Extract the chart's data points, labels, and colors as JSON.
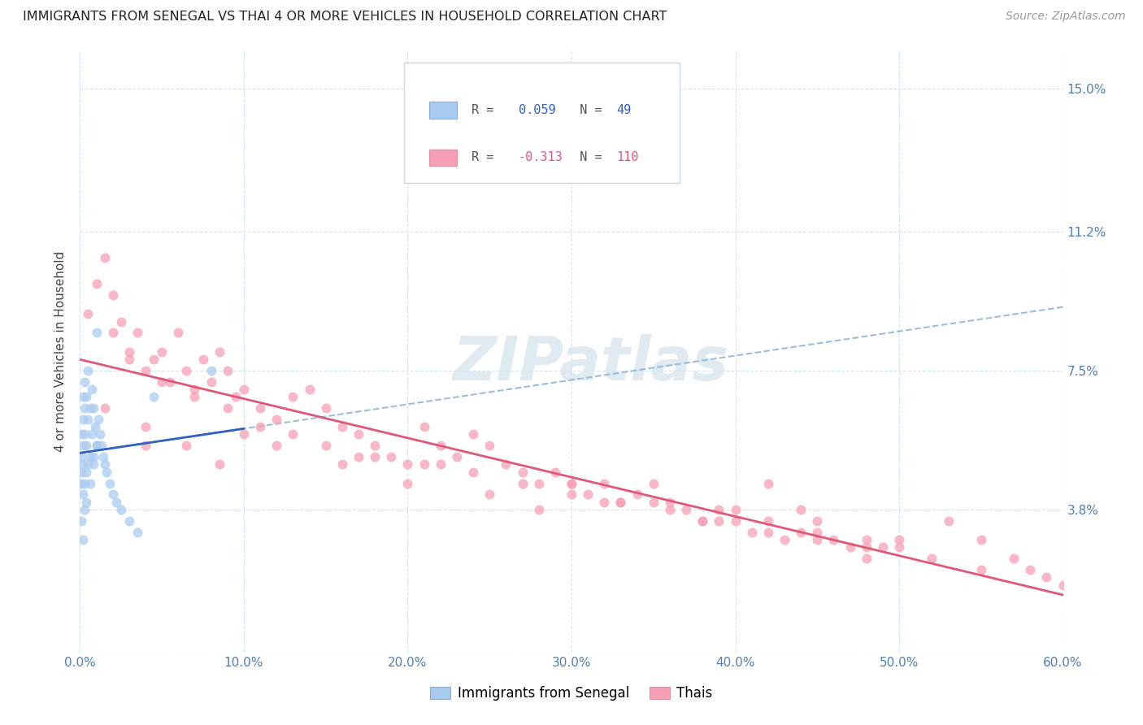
{
  "title": "IMMIGRANTS FROM SENEGAL VS THAI 4 OR MORE VEHICLES IN HOUSEHOLD CORRELATION CHART",
  "source": "Source: ZipAtlas.com",
  "ylabel_label": "4 or more Vehicles in Household",
  "legend_label1": "Immigrants from Senegal",
  "legend_label2": "Thais",
  "r1": 0.059,
  "n1": 49,
  "r2": -0.313,
  "n2": 110,
  "color_senegal": "#aacbf0",
  "color_thai": "#f5a0b5",
  "color_senegal_line": "#3060c0",
  "color_thai_line": "#e05878",
  "color_dash": "#90b8d8",
  "color_axis_text": "#5080b0",
  "color_grid": "#d5e5f0",
  "watermark_color": "#ccdde8",
  "xlim": [
    0,
    60
  ],
  "ylim": [
    0,
    16.0
  ],
  "xtick_vals": [
    0,
    10,
    20,
    30,
    40,
    50,
    60
  ],
  "ytick_vals": [
    0,
    3.8,
    7.5,
    11.2,
    15.0
  ],
  "ytick_labels": [
    "",
    "3.8%",
    "7.5%",
    "11.2%",
    "15.0%"
  ],
  "senegal_x": [
    0.1,
    0.1,
    0.1,
    0.1,
    0.2,
    0.2,
    0.2,
    0.2,
    0.2,
    0.3,
    0.3,
    0.3,
    0.3,
    0.4,
    0.4,
    0.4,
    0.5,
    0.5,
    0.5,
    0.6,
    0.6,
    0.7,
    0.7,
    0.8,
    0.8,
    0.9,
    1.0,
    1.0,
    1.1,
    1.2,
    1.3,
    1.4,
    1.5,
    1.6,
    1.8,
    2.0,
    2.2,
    2.5,
    3.0,
    3.5,
    0.1,
    0.2,
    0.3,
    0.4,
    0.6,
    0.8,
    1.0,
    4.5,
    8.0
  ],
  "senegal_y": [
    5.8,
    5.2,
    4.8,
    4.5,
    6.8,
    6.2,
    5.5,
    5.0,
    4.2,
    7.2,
    6.5,
    5.8,
    4.5,
    6.8,
    5.5,
    4.8,
    7.5,
    6.2,
    5.0,
    6.5,
    5.2,
    7.0,
    5.8,
    6.5,
    5.2,
    6.0,
    8.5,
    5.5,
    6.2,
    5.8,
    5.5,
    5.2,
    5.0,
    4.8,
    4.5,
    4.2,
    4.0,
    3.8,
    3.5,
    3.2,
    3.5,
    3.0,
    3.8,
    4.0,
    4.5,
    5.0,
    5.5,
    6.8,
    7.5
  ],
  "thai_x": [
    0.5,
    1.0,
    1.5,
    2.0,
    2.5,
    3.0,
    3.5,
    4.0,
    4.5,
    5.0,
    5.5,
    6.0,
    6.5,
    7.0,
    7.5,
    8.0,
    8.5,
    9.0,
    9.5,
    10.0,
    11.0,
    12.0,
    13.0,
    14.0,
    15.0,
    16.0,
    17.0,
    18.0,
    19.0,
    20.0,
    21.0,
    22.0,
    23.0,
    24.0,
    25.0,
    26.0,
    27.0,
    28.0,
    29.0,
    30.0,
    31.0,
    32.0,
    33.0,
    34.0,
    35.0,
    36.0,
    37.0,
    38.0,
    39.0,
    40.0,
    41.0,
    42.0,
    43.0,
    44.0,
    45.0,
    46.0,
    47.0,
    48.0,
    49.0,
    50.0,
    2.0,
    3.0,
    5.0,
    7.0,
    9.0,
    11.0,
    13.0,
    15.0,
    18.0,
    21.0,
    24.0,
    27.0,
    30.0,
    33.0,
    36.0,
    39.0,
    42.0,
    45.0,
    48.0,
    52.0,
    1.5,
    4.0,
    6.5,
    8.5,
    12.0,
    16.0,
    20.0,
    25.0,
    30.0,
    35.0,
    40.0,
    45.0,
    50.0,
    55.0,
    57.0,
    58.0,
    59.0,
    60.0,
    4.0,
    22.0,
    42.0,
    53.0,
    55.0,
    28.0,
    38.0,
    48.0,
    10.0,
    17.0,
    32.0,
    44.0
  ],
  "thai_y": [
    9.0,
    9.8,
    10.5,
    9.5,
    8.8,
    8.0,
    8.5,
    7.5,
    7.8,
    8.0,
    7.2,
    8.5,
    7.5,
    7.0,
    7.8,
    7.2,
    8.0,
    7.5,
    6.8,
    7.0,
    6.5,
    6.2,
    6.8,
    7.0,
    6.5,
    6.0,
    5.8,
    5.5,
    5.2,
    5.0,
    6.0,
    5.5,
    5.2,
    5.8,
    5.5,
    5.0,
    4.8,
    4.5,
    4.8,
    4.5,
    4.2,
    4.5,
    4.0,
    4.2,
    4.5,
    4.0,
    3.8,
    3.5,
    3.8,
    3.5,
    3.2,
    3.5,
    3.0,
    3.2,
    3.5,
    3.0,
    2.8,
    2.5,
    2.8,
    3.0,
    8.5,
    7.8,
    7.2,
    6.8,
    6.5,
    6.0,
    5.8,
    5.5,
    5.2,
    5.0,
    4.8,
    4.5,
    4.2,
    4.0,
    3.8,
    3.5,
    3.2,
    3.0,
    2.8,
    2.5,
    6.5,
    6.0,
    5.5,
    5.0,
    5.5,
    5.0,
    4.5,
    4.2,
    4.5,
    4.0,
    3.8,
    3.2,
    2.8,
    2.2,
    2.5,
    2.2,
    2.0,
    1.8,
    5.5,
    5.0,
    4.5,
    3.5,
    3.0,
    3.8,
    3.5,
    3.0,
    5.8,
    5.2,
    4.0,
    3.8
  ]
}
